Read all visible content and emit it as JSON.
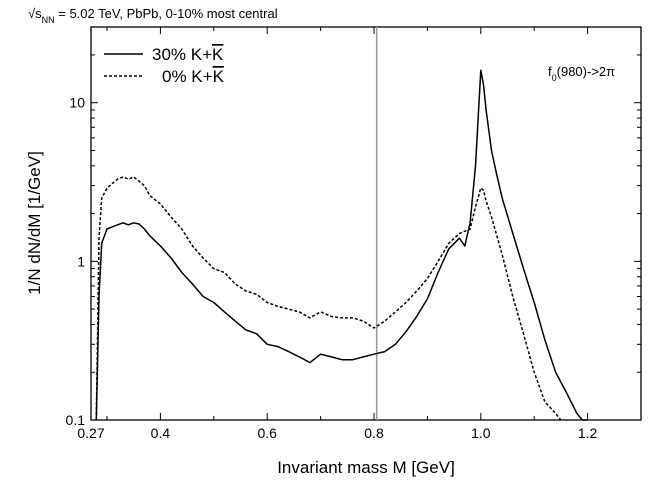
{
  "chart_data": {
    "type": "line",
    "title": "√s_NN = 5.02 TeV, PbPb, 0-10% most central",
    "title_parts": {
      "prefix": "√s",
      "sub": "NN",
      "rest": " = 5.02 TeV, PbPb, 0-10% most central"
    },
    "annotation": "f0(980)->2π",
    "annotation_parts": {
      "main": "f",
      "sub": "0",
      "rest": "(980)->2π"
    },
    "xlabel": "Invariant mass M [GeV]",
    "ylabel": "1/N dN/dM [1/GeV]",
    "xlim": [
      0.27,
      1.3
    ],
    "ylim": [
      0.1,
      30
    ],
    "yscale": "log",
    "xticks": [
      0.27,
      0.4,
      0.6,
      0.8,
      1.0,
      1.2
    ],
    "xtick_labels": [
      "0.27",
      "0.4",
      "0.6",
      "0.8",
      "1.0",
      "1.2"
    ],
    "yticks": [
      0.1,
      1,
      10
    ],
    "ytick_labels": [
      "0.1",
      "1",
      "10"
    ],
    "vline_x": 0.805,
    "legend_position": "top-left",
    "grid": false,
    "series": [
      {
        "name": "30% K+K̄",
        "name_parts": {
          "pct": "30% K+",
          "bar": "K"
        },
        "style": "solid",
        "color": "#000000",
        "x": [
          0.28,
          0.285,
          0.29,
          0.3,
          0.31,
          0.32,
          0.33,
          0.34,
          0.35,
          0.36,
          0.37,
          0.38,
          0.4,
          0.42,
          0.44,
          0.46,
          0.48,
          0.5,
          0.52,
          0.54,
          0.56,
          0.58,
          0.6,
          0.62,
          0.64,
          0.66,
          0.68,
          0.7,
          0.72,
          0.74,
          0.76,
          0.78,
          0.8,
          0.82,
          0.84,
          0.86,
          0.88,
          0.9,
          0.92,
          0.94,
          0.96,
          0.97,
          0.98,
          0.99,
          1.0,
          1.005,
          1.01,
          1.02,
          1.03,
          1.04,
          1.06,
          1.08,
          1.1,
          1.12,
          1.14,
          1.16,
          1.18,
          1.19,
          1.2
        ],
        "y": [
          0.1,
          0.6,
          1.3,
          1.6,
          1.65,
          1.7,
          1.75,
          1.7,
          1.75,
          1.72,
          1.6,
          1.45,
          1.25,
          1.05,
          0.85,
          0.72,
          0.6,
          0.55,
          0.48,
          0.42,
          0.37,
          0.35,
          0.3,
          0.29,
          0.27,
          0.25,
          0.23,
          0.26,
          0.25,
          0.24,
          0.24,
          0.25,
          0.26,
          0.27,
          0.3,
          0.36,
          0.45,
          0.58,
          0.85,
          1.2,
          1.4,
          1.25,
          1.75,
          4.0,
          16.0,
          13.0,
          9.0,
          5.0,
          3.5,
          2.5,
          1.5,
          0.9,
          0.55,
          0.32,
          0.2,
          0.15,
          0.11,
          0.1,
          0.1
        ]
      },
      {
        "name": "0% K+K̄",
        "name_parts": {
          "pct": "0% K+",
          "bar": "K"
        },
        "style": "dashed",
        "color": "#000000",
        "x": [
          0.28,
          0.285,
          0.29,
          0.3,
          0.31,
          0.32,
          0.33,
          0.34,
          0.35,
          0.36,
          0.37,
          0.38,
          0.4,
          0.42,
          0.44,
          0.46,
          0.48,
          0.5,
          0.52,
          0.54,
          0.56,
          0.58,
          0.6,
          0.62,
          0.64,
          0.66,
          0.68,
          0.7,
          0.72,
          0.74,
          0.76,
          0.78,
          0.8,
          0.82,
          0.84,
          0.86,
          0.88,
          0.9,
          0.92,
          0.94,
          0.96,
          0.97,
          0.98,
          0.99,
          1.0,
          1.005,
          1.01,
          1.02,
          1.04,
          1.06,
          1.08,
          1.1,
          1.12,
          1.14,
          1.15
        ],
        "y": [
          0.1,
          1.4,
          2.5,
          2.9,
          3.1,
          3.3,
          3.4,
          3.3,
          3.4,
          3.2,
          3.0,
          2.6,
          2.3,
          1.9,
          1.6,
          1.25,
          1.05,
          0.9,
          0.85,
          0.72,
          0.65,
          0.62,
          0.55,
          0.52,
          0.5,
          0.48,
          0.44,
          0.48,
          0.45,
          0.44,
          0.44,
          0.42,
          0.38,
          0.42,
          0.48,
          0.55,
          0.65,
          0.78,
          1.0,
          1.3,
          1.5,
          1.55,
          1.6,
          2.2,
          2.9,
          2.8,
          2.4,
          1.9,
          1.1,
          0.6,
          0.35,
          0.2,
          0.13,
          0.11,
          0.1
        ]
      }
    ]
  }
}
